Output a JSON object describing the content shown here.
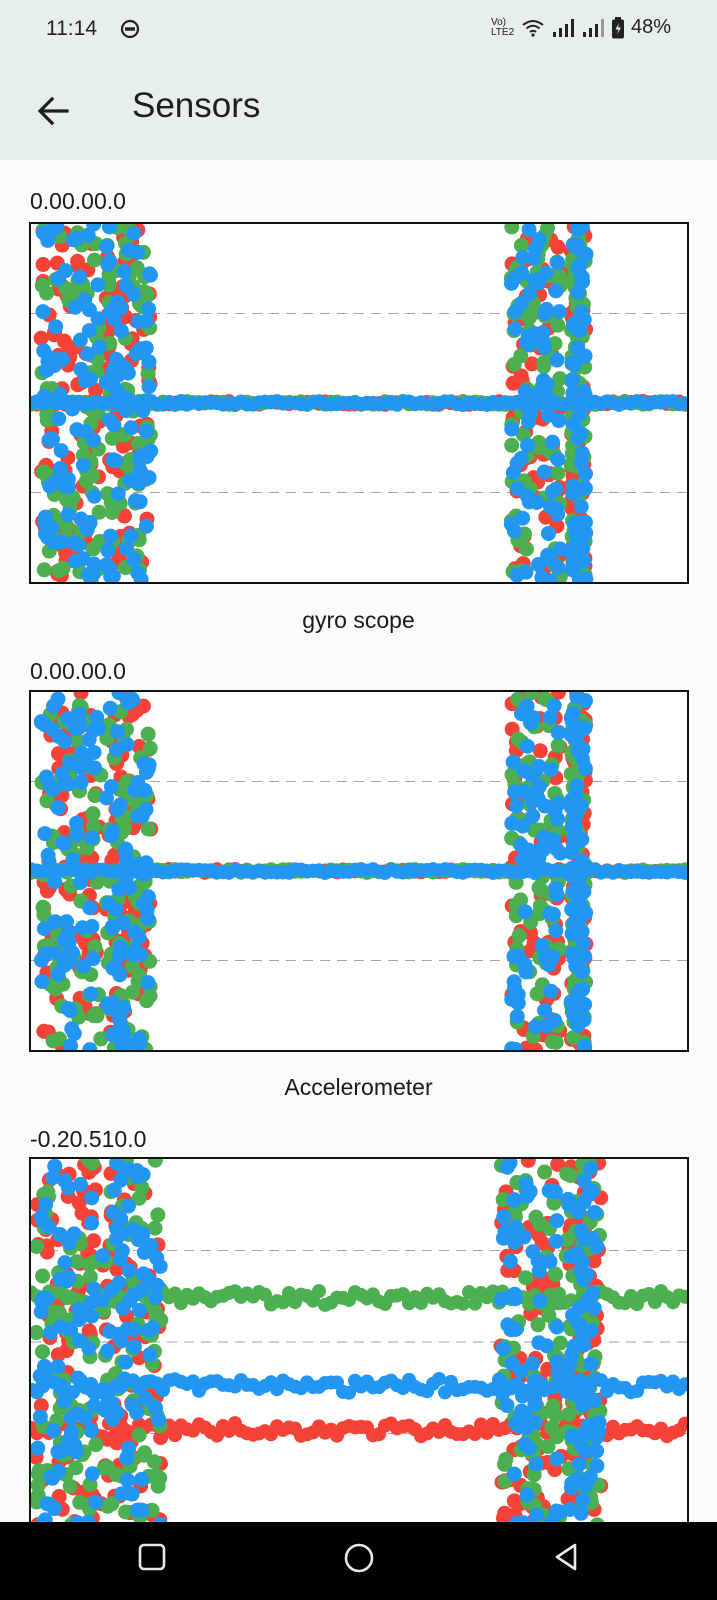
{
  "status_bar": {
    "time": "11:14",
    "network_label": "Vo) LTE2",
    "battery": "48%",
    "icons": [
      "dnd-icon",
      "wifi-icon",
      "signal-icon",
      "signal-icon",
      "battery-icon"
    ]
  },
  "app_bar": {
    "title": "Sensors",
    "back_icon": "arrow-back-icon"
  },
  "sensors": [
    {
      "value_text": "0.00.00.0",
      "caption": "gyro scope"
    },
    {
      "value_text": "0.00.00.0",
      "caption": "Accelerometer"
    },
    {
      "value_text": "-0.20.510.0",
      "caption": ""
    }
  ],
  "chart_data": [
    {
      "type": "scatter",
      "colors": {
        "series_1": "#f44336",
        "series_2": "#4caf50",
        "series_3": "#2196f3"
      },
      "grid": true,
      "series": [
        {
          "values": []
        },
        {
          "values": []
        },
        {
          "values": []
        }
      ]
    },
    {
      "type": "scatter",
      "colors": {
        "series_1": "#f44336",
        "series_2": "#4caf50",
        "series_3": "#2196f3"
      },
      "grid": true,
      "series": [
        {
          "values": []
        },
        {
          "values": []
        },
        {
          "values": []
        }
      ]
    },
    {
      "type": "scatter",
      "colors": {
        "series_1": "#f44336",
        "series_2": "#4caf50",
        "series_3": "#2196f3"
      },
      "grid": true,
      "series": [
        {
          "values": []
        },
        {
          "values": []
        },
        {
          "values": []
        }
      ]
    }
  ],
  "nav_bar": {
    "icons": [
      "recents-square-icon",
      "home-circle-icon",
      "back-triangle-icon"
    ]
  }
}
